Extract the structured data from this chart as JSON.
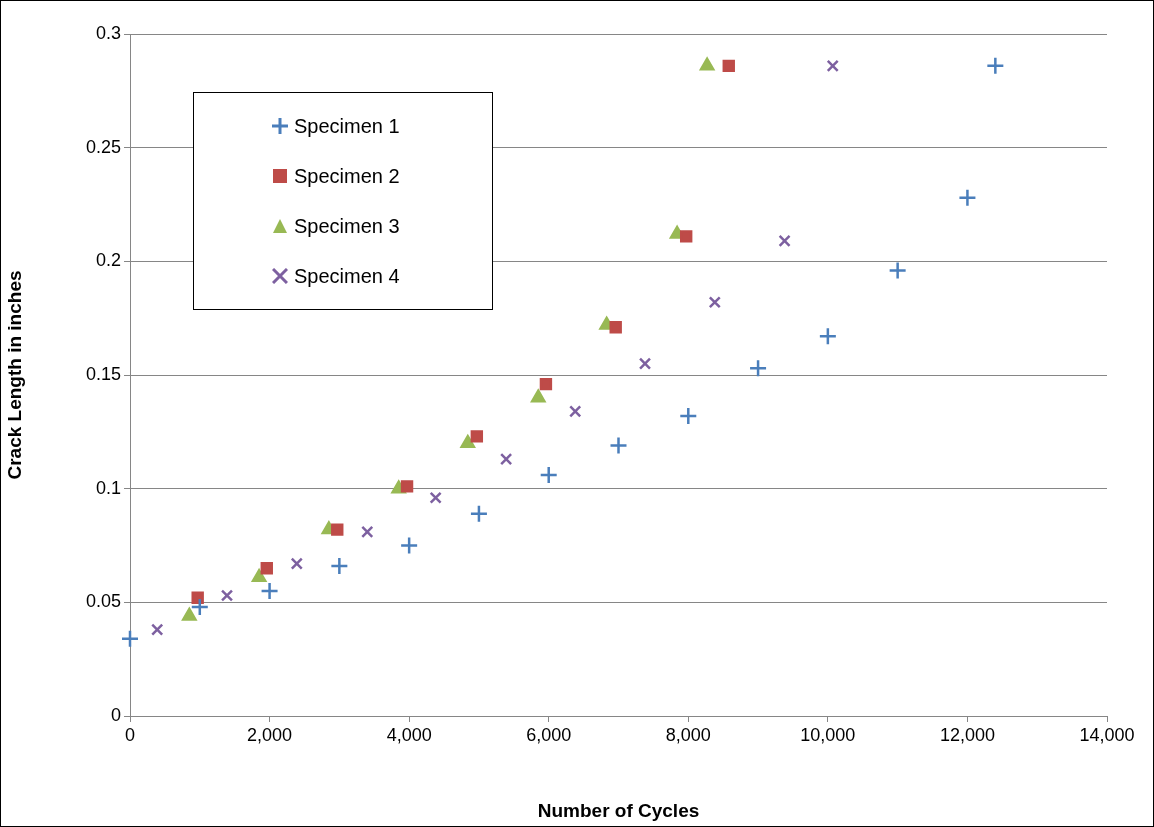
{
  "chart_data": {
    "type": "scatter",
    "xlabel": "Number of Cycles",
    "ylabel": "Crack Length in inches",
    "xlim": [
      0,
      14000
    ],
    "xticks": [
      {
        "value": 0,
        "label": "0"
      },
      {
        "value": 2000,
        "label": "2,000"
      },
      {
        "value": 4000,
        "label": "4,000"
      },
      {
        "value": 6000,
        "label": "6,000"
      },
      {
        "value": 8000,
        "label": "8,000"
      },
      {
        "value": 10000,
        "label": "10,000"
      },
      {
        "value": 12000,
        "label": "12,000"
      },
      {
        "value": 14000,
        "label": "14,000"
      }
    ],
    "ylim": [
      0,
      0.3
    ],
    "yticks": [
      0,
      0.05,
      0.1,
      0.15,
      0.2,
      0.25,
      0.3
    ],
    "grid": "y",
    "legend": "top left",
    "series": [
      {
        "name": "Specimen 1",
        "color": "#4a7ebb",
        "marker": "cross",
        "x": [
          0,
          1000,
          2000,
          3000,
          4000,
          5000,
          6000,
          7000,
          8000,
          9000,
          10000,
          11000,
          12000,
          12400
        ],
        "values": [
          0.034,
          0.048,
          0.055,
          0.066,
          0.075,
          0.089,
          0.106,
          0.119,
          0.132,
          0.153,
          0.167,
          0.196,
          0.228,
          0.286
        ]
      },
      {
        "name": "Specimen 2",
        "color": "#be4b48",
        "marker": "square",
        "x": [
          970,
          1960,
          2970,
          3970,
          4970,
          5960,
          6960,
          7970,
          8580
        ],
        "values": [
          0.052,
          0.065,
          0.082,
          0.101,
          0.123,
          0.146,
          0.171,
          0.211,
          0.286
        ]
      },
      {
        "name": "Specimen 3",
        "color": "#98b954",
        "marker": "triangle",
        "x": [
          850,
          1850,
          2850,
          3850,
          4840,
          5850,
          6830,
          7840,
          8270
        ],
        "values": [
          0.044,
          0.061,
          0.082,
          0.1,
          0.12,
          0.14,
          0.172,
          0.212,
          0.286
        ]
      },
      {
        "name": "Specimen 4",
        "color": "#7d60a0",
        "marker": "x",
        "x": [
          390,
          1390,
          2390,
          3400,
          4380,
          5390,
          6380,
          7380,
          8380,
          9380,
          10070
        ],
        "values": [
          0.038,
          0.053,
          0.067,
          0.081,
          0.096,
          0.113,
          0.134,
          0.155,
          0.182,
          0.209,
          0.286
        ]
      }
    ]
  }
}
